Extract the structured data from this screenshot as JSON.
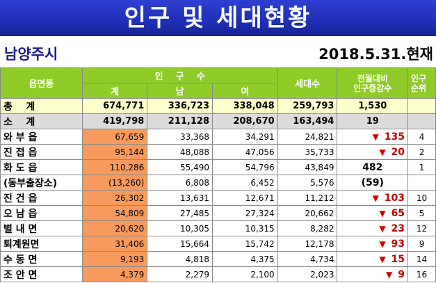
{
  "title": "인구 및 세대현황",
  "city": "남양주시",
  "date": "2018.5.31.현재",
  "headers": {
    "district": "읍면동",
    "population": "인    구    수",
    "total": "계",
    "male": "남",
    "female": "여",
    "households": "세대수",
    "change_line1": "전월대비",
    "change_line2": "인구증감수",
    "rank_line1": "인구",
    "rank_line2": "순위"
  },
  "total_row": {
    "name": "총    계",
    "total": "674,771",
    "male": "336,723",
    "female": "338,048",
    "households": "259,793",
    "change": "1,530",
    "rank": ""
  },
  "sub_row": {
    "name": "소    계",
    "total": "419,798",
    "male": "211,128",
    "female": "208,670",
    "households": "163,494",
    "change": "19",
    "rank": ""
  },
  "rows": [
    {
      "name": "와 부 읍",
      "total": "67,659",
      "male": "33,368",
      "female": "34,291",
      "households": "24,821",
      "change": "135",
      "dir": "down",
      "rank": "4"
    },
    {
      "name": "진 접 읍",
      "total": "95,144",
      "male": "48,088",
      "female": "47,056",
      "households": "35,733",
      "change": "20",
      "dir": "down",
      "rank": "2"
    },
    {
      "name": "화 도 읍",
      "total": "110,286",
      "male": "55,490",
      "female": "54,796",
      "households": "43,849",
      "change": "482",
      "dir": "none",
      "rank": "1"
    },
    {
      "name": "(동부출장소)",
      "total": "(13,260)",
      "male": "6,808",
      "female": "6,452",
      "households": "5,576",
      "change": "(59)",
      "dir": "none",
      "rank": ""
    },
    {
      "name": "진 건 읍",
      "total": "26,302",
      "male": "13,631",
      "female": "12,671",
      "households": "11,212",
      "change": "103",
      "dir": "down",
      "rank": "10"
    },
    {
      "name": "오 남 읍",
      "total": "54,809",
      "male": "27,485",
      "female": "27,324",
      "households": "20,662",
      "change": "65",
      "dir": "down",
      "rank": "5"
    },
    {
      "name": "별 내 면",
      "total": "20,620",
      "male": "10,305",
      "female": "10,315",
      "households": "8,282",
      "change": "23",
      "dir": "down",
      "rank": "12"
    },
    {
      "name": "퇴계원면",
      "total": "31,406",
      "male": "15,664",
      "female": "15,742",
      "households": "12,178",
      "change": "93",
      "dir": "down",
      "rank": "9"
    },
    {
      "name": "수 동 면",
      "total": "9,193",
      "male": "4,818",
      "female": "4,375",
      "households": "4,734",
      "change": "15",
      "dir": "down",
      "rank": "14"
    },
    {
      "name": "조 안 면",
      "total": "4,379",
      "male": "2,279",
      "female": "2,100",
      "households": "2,023",
      "change": "9",
      "dir": "down",
      "rank": "16"
    }
  ],
  "colors": {
    "header_green": "#8fcc2a",
    "total_yellow": "#ffffcc",
    "sub_gray": "#dcdcdc",
    "orange": "#f79a5c",
    "banner_blue": "#1e2fb8",
    "down_red": "#d00000"
  },
  "icons": {
    "decrease": "down-triangle-icon"
  }
}
